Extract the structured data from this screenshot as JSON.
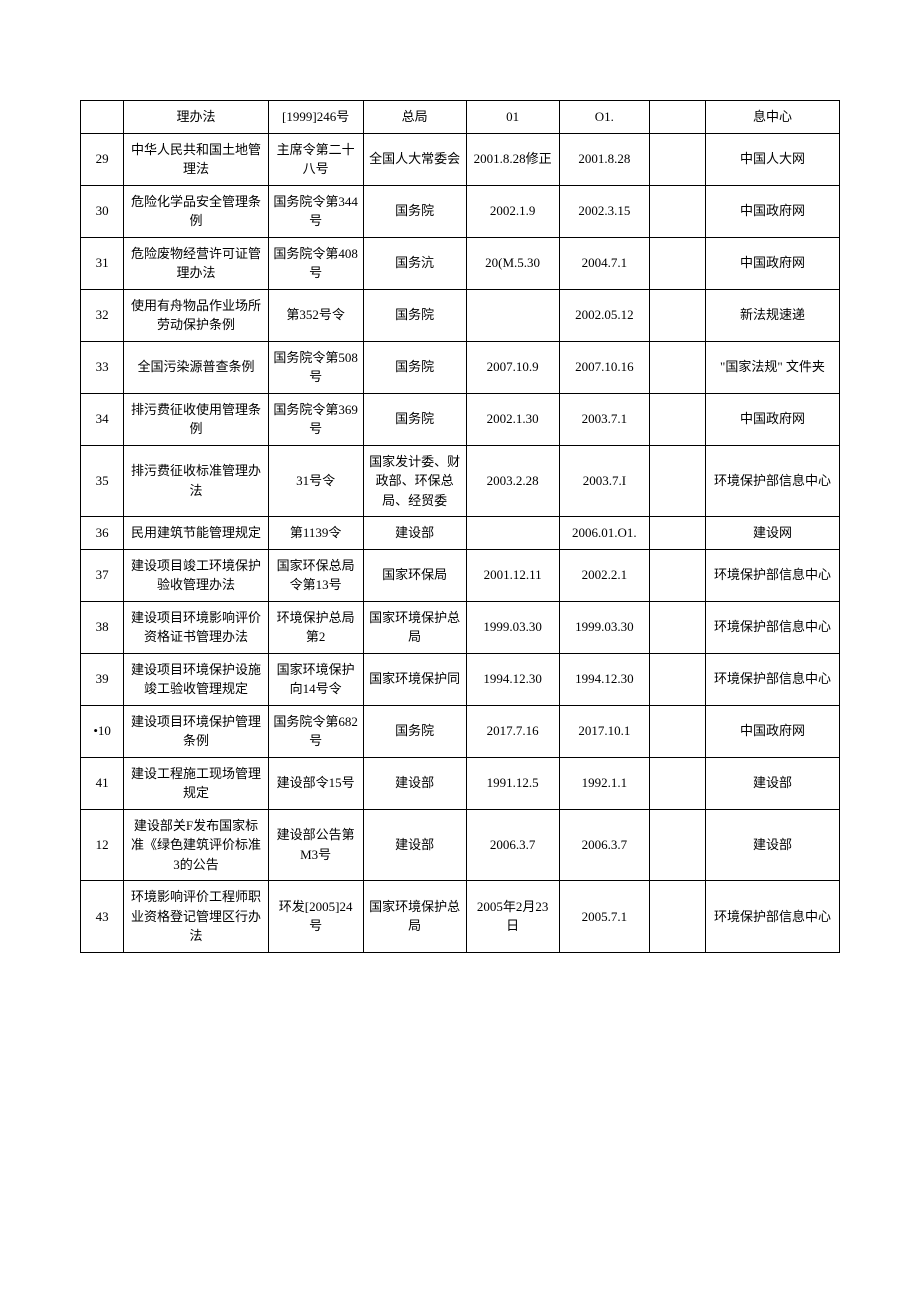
{
  "rows": [
    {
      "idx": "",
      "name": "理办法",
      "docno": "[1999]246号",
      "issuer": "总局",
      "date1": "01",
      "date2": "O1.",
      "blank": "",
      "src": "息中心"
    },
    {
      "idx": "29",
      "name": "中华人民共和国土地管理法",
      "docno": "主席令第二十八号",
      "issuer": "全国人大常委会",
      "date1": "2001.8.28修正",
      "date2": "2001.8.28",
      "blank": "",
      "src": "中国人大网"
    },
    {
      "idx": "30",
      "name": "危险化学品安全管理条例",
      "docno": "国务院令第344号",
      "issuer": "国务院",
      "date1": "2002.1.9",
      "date2": "2002.3.15",
      "blank": "",
      "src": "中国政府网"
    },
    {
      "idx": "31",
      "name": "危险废物经营许可证管理办法",
      "docno": "国务院令第408号",
      "issuer": "国务沆",
      "date1": "20(M.5.30",
      "date2": "2004.7.1",
      "blank": "",
      "src": "中国政府网"
    },
    {
      "idx": "32",
      "name": "使用有舟物品作业场所劳动保护条例",
      "docno": "第352号令",
      "issuer": "国务院",
      "date1": "",
      "date2": "2002.05.12",
      "blank": "",
      "src": "新法规速递"
    },
    {
      "idx": "33",
      "name": "全国污染源普查条例",
      "docno": "国务院令第508号",
      "issuer": "国务院",
      "date1": "2007.10.9",
      "date2": "2007.10.16",
      "blank": "",
      "src": "\"国家法规\" 文件夹"
    },
    {
      "idx": "34",
      "name": "排污费征收使用管理条例",
      "docno": "国务院令第369号",
      "issuer": "国务院",
      "date1": "2002.1.30",
      "date2": "2003.7.1",
      "blank": "",
      "src": "中国政府网"
    },
    {
      "idx": "35",
      "name": "排污费征收标准管理办法",
      "docno": "31号令",
      "issuer": "国家发计委、财政部、环保总局、经贸委",
      "date1": "2003.2.28",
      "date2": "2003.7.I",
      "blank": "",
      "src": "环境保护部信息中心"
    },
    {
      "idx": "36",
      "name": "民用建筑节能管理规定",
      "docno": "第1139令",
      "issuer": "建设部",
      "date1": "",
      "date2": "2006.01.O1.",
      "blank": "",
      "src": "建设网"
    },
    {
      "idx": "37",
      "name": "建设项目竣工环境保护验收管理办法",
      "docno": "国家环保总局令第13号",
      "issuer": "国家环保局",
      "date1": "2001.12.11",
      "date2": "2002.2.1",
      "blank": "",
      "src": "环境保护部信息中心"
    },
    {
      "idx": "38",
      "name": "建设项目环境影响评价资格证书管理办法",
      "docno": "环境保护总局第2",
      "issuer": "国家环境保护总局",
      "date1": "1999.03.30",
      "date2": "1999.03.30",
      "blank": "",
      "src": "环境保护部信息中心"
    },
    {
      "idx": "39",
      "name": "建设项目环境保护设施竣工验收管理规定",
      "docno": "国家环境保护向14号令",
      "issuer": "国家环境保护同",
      "date1": "1994.12.30",
      "date2": "1994.12.30",
      "blank": "",
      "src": "环境保护部信息中心"
    },
    {
      "idx": "•10",
      "name": "建设项目环境保护管理条例",
      "docno": "国务院令第682号",
      "issuer": "国务院",
      "date1": "2017.7.16",
      "date2": "2017.10.1",
      "blank": "",
      "src": "中国政府网"
    },
    {
      "idx": "41",
      "name": "建设工程施工现场管理规定",
      "docno": "建设部令15号",
      "issuer": "建设部",
      "date1": "1991.12.5",
      "date2": "1992.1.1",
      "blank": "",
      "src": "建设部"
    },
    {
      "idx": "12",
      "name": "建设部关F发布国家标准《绿色建筑评价标准3的公告",
      "docno": "建设部公告第M3号",
      "issuer": "建设部",
      "date1": "2006.3.7",
      "date2": "2006.3.7",
      "blank": "",
      "src": "建设部"
    },
    {
      "idx": "43",
      "name": "环境影响评价工程师职业资格登记管埋区行办法",
      "docno": "环发[2005]24号",
      "issuer": "国家环境保护总局",
      "date1": "2005年2月23日",
      "date2": "2005.7.1",
      "blank": "",
      "src": "环境保护部信息中心"
    }
  ]
}
